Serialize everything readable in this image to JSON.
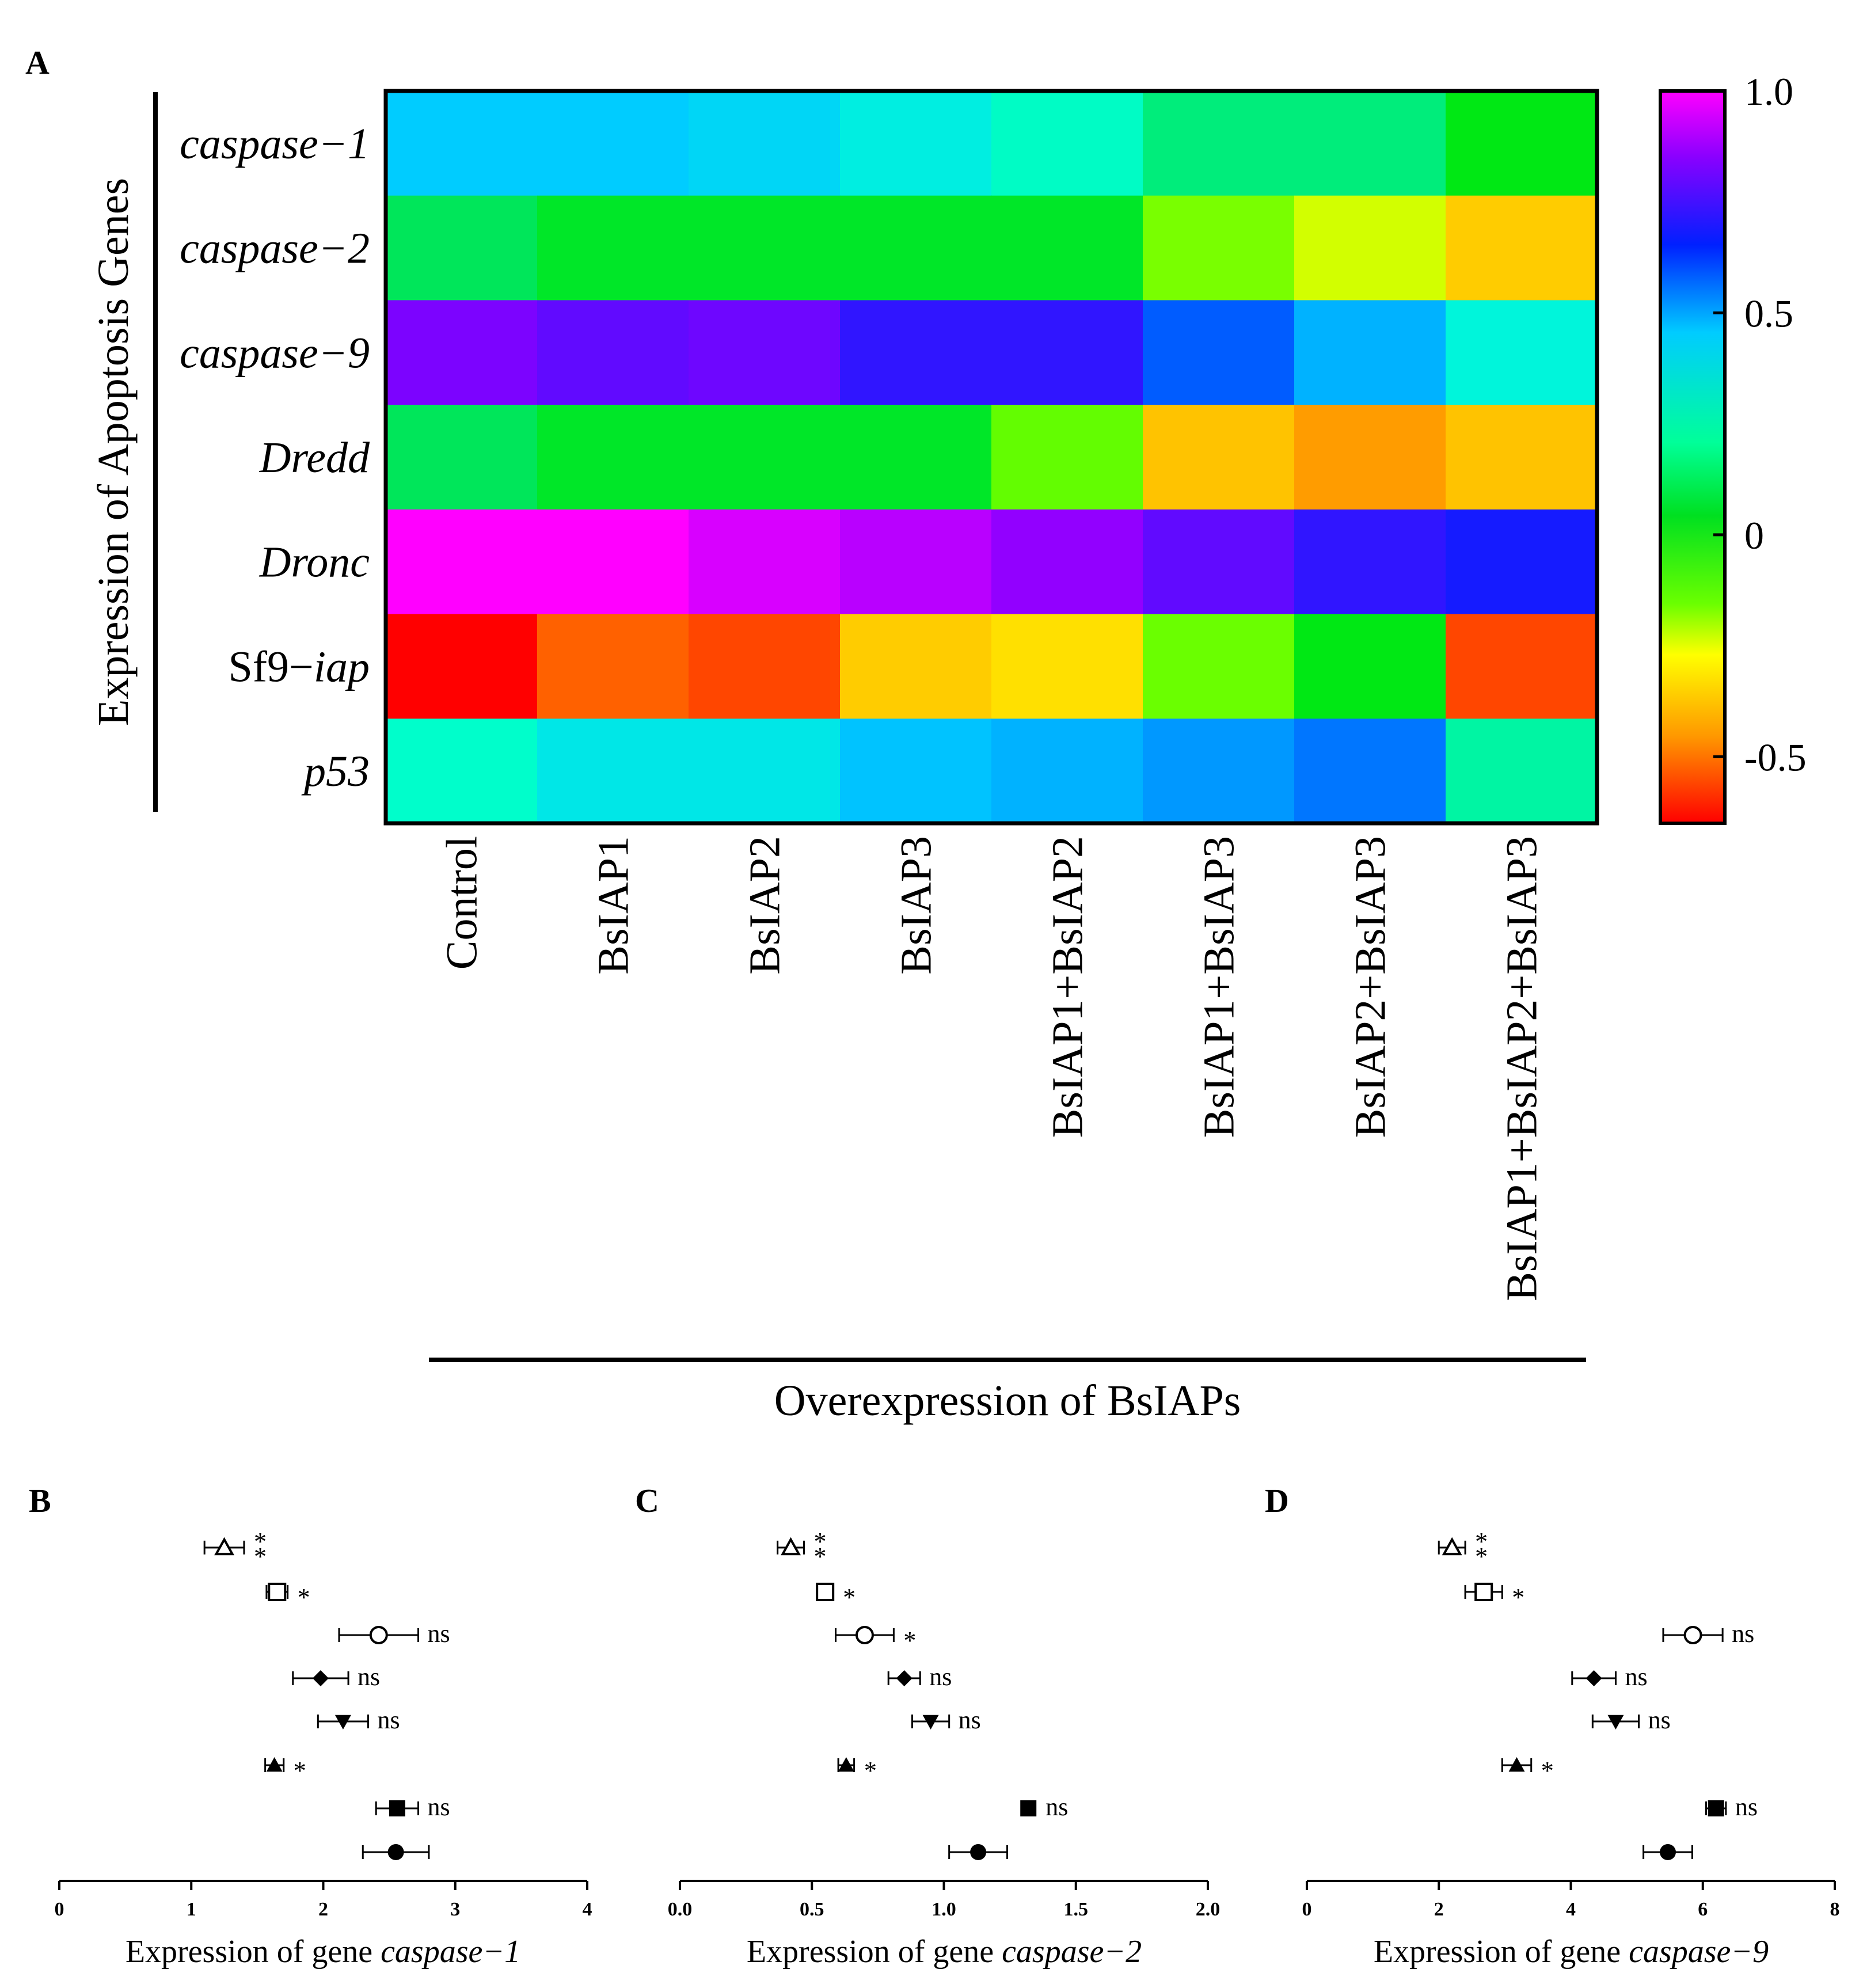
{
  "panelA": {
    "letter": "A",
    "ylabel": "Expression of Apoptosis Genes",
    "xlabel": "Overexpression of BsIAPs",
    "rows": [
      {
        "pre": "",
        "it": "caspase−1",
        "post": ""
      },
      {
        "pre": "",
        "it": "caspase−2",
        "post": ""
      },
      {
        "pre": "",
        "it": "caspase−9",
        "post": ""
      },
      {
        "pre": "",
        "it": "Dredd",
        "post": ""
      },
      {
        "pre": "",
        "it": "Dronc",
        "post": ""
      },
      {
        "pre": "Sf9−",
        "it": "iap",
        "post": ""
      },
      {
        "pre": "",
        "it": "p53",
        "post": ""
      }
    ],
    "columns": [
      "Control",
      "BsIAP1",
      "BsIAP2",
      "BsIAP3",
      "BsIAP1+BsIAP2",
      "BsIAP1+BsIAP3",
      "BsIAP2+BsIAP3",
      "BsIAP1+BsIAP2+BsIAP3"
    ],
    "colorbar_ticks": [
      "1.0",
      "0.5",
      "0",
      "-0.5"
    ]
  },
  "chart_data": [
    {
      "type": "heatmap",
      "panel": "A",
      "rows": [
        "caspase-1",
        "caspase-2",
        "caspase-9",
        "Dredd",
        "Dronc",
        "Sf9-iap",
        "p53"
      ],
      "columns": [
        "Control",
        "BsIAP1",
        "BsIAP2",
        "BsIAP3",
        "BsIAP1+BsIAP2",
        "BsIAP1+BsIAP3",
        "BsIAP2+BsIAP3",
        "BsIAP1+BsIAP2+BsIAP3"
      ],
      "values": [
        [
          0.45,
          0.45,
          0.42,
          0.35,
          0.28,
          0.17,
          0.17,
          0.05
        ],
        [
          0.12,
          0.07,
          0.07,
          0.07,
          0.07,
          -0.12,
          -0.24,
          -0.42
        ],
        [
          0.83,
          0.79,
          0.81,
          0.72,
          0.72,
          0.58,
          0.48,
          0.33
        ],
        [
          0.12,
          0.07,
          0.07,
          0.07,
          -0.09,
          -0.45,
          -0.51,
          -0.45
        ],
        [
          1.0,
          1.0,
          0.95,
          0.91,
          0.86,
          0.79,
          0.72,
          0.68
        ],
        [
          -0.65,
          -0.56,
          -0.58,
          -0.42,
          -0.35,
          -0.1,
          0.05,
          -0.58
        ],
        [
          0.29,
          0.37,
          0.37,
          0.46,
          0.48,
          0.51,
          0.55,
          0.23
        ]
      ],
      "colorbar_range": [
        -0.65,
        1.0
      ],
      "colorbar_ticks": [
        1.0,
        0.5,
        0,
        -0.5
      ]
    },
    {
      "type": "scatter",
      "panel": "B",
      "title": "B",
      "xlabel": "Expression of gene caspase−1",
      "xlim": [
        0,
        4
      ],
      "xticks": [
        "0",
        "1",
        "2",
        "3",
        "4"
      ],
      "points": [
        {
          "marker": "open-triangle",
          "mean": 1.25,
          "err": 0.15,
          "sig": "**"
        },
        {
          "marker": "open-square",
          "mean": 1.65,
          "err": 0.08,
          "sig": "*"
        },
        {
          "marker": "open-circle",
          "mean": 2.42,
          "err": 0.3,
          "sig": "ns"
        },
        {
          "marker": "filled-diamond",
          "mean": 1.98,
          "err": 0.21,
          "sig": "ns"
        },
        {
          "marker": "filled-triangle-down",
          "mean": 2.15,
          "err": 0.19,
          "sig": "ns"
        },
        {
          "marker": "filled-triangle",
          "mean": 1.63,
          "err": 0.07,
          "sig": "*"
        },
        {
          "marker": "filled-square",
          "mean": 2.56,
          "err": 0.16,
          "sig": "ns"
        },
        {
          "marker": "filled-circle",
          "mean": 2.55,
          "err": 0.25,
          "sig": ""
        }
      ]
    },
    {
      "type": "scatter",
      "panel": "C",
      "title": "C",
      "xlabel": "Expression of gene caspase−2",
      "xlim": [
        0,
        2
      ],
      "xticks": [
        "0.0",
        "0.5",
        "1.0",
        "1.5",
        "2.0"
      ],
      "points": [
        {
          "marker": "open-triangle",
          "mean": 0.42,
          "err": 0.05,
          "sig": "**"
        },
        {
          "marker": "open-square",
          "mean": 0.55,
          "err": 0.03,
          "sig": "*"
        },
        {
          "marker": "open-circle",
          "mean": 0.7,
          "err": 0.11,
          "sig": "*"
        },
        {
          "marker": "filled-diamond",
          "mean": 0.85,
          "err": 0.06,
          "sig": "ns"
        },
        {
          "marker": "filled-triangle-down",
          "mean": 0.95,
          "err": 0.07,
          "sig": "ns"
        },
        {
          "marker": "filled-triangle",
          "mean": 0.63,
          "err": 0.03,
          "sig": "*"
        },
        {
          "marker": "filled-square",
          "mean": 1.32,
          "err": 0.0,
          "sig": "ns"
        },
        {
          "marker": "filled-circle",
          "mean": 1.13,
          "err": 0.11,
          "sig": ""
        }
      ]
    },
    {
      "type": "scatter",
      "panel": "D",
      "title": "D",
      "xlabel": "Expression of gene caspase−9",
      "xlim": [
        0,
        8
      ],
      "xticks": [
        "0",
        "2",
        "4",
        "6",
        "8"
      ],
      "points": [
        {
          "marker": "open-triangle",
          "mean": 2.2,
          "err": 0.2,
          "sig": "**"
        },
        {
          "marker": "open-square",
          "mean": 2.68,
          "err": 0.28,
          "sig": "*"
        },
        {
          "marker": "open-circle",
          "mean": 5.85,
          "err": 0.45,
          "sig": "ns"
        },
        {
          "marker": "filled-diamond",
          "mean": 4.35,
          "err": 0.33,
          "sig": "ns"
        },
        {
          "marker": "filled-triangle-down",
          "mean": 4.68,
          "err": 0.35,
          "sig": "ns"
        },
        {
          "marker": "filled-triangle",
          "mean": 3.18,
          "err": 0.22,
          "sig": "*"
        },
        {
          "marker": "filled-square",
          "mean": 6.2,
          "err": 0.15,
          "sig": "ns"
        },
        {
          "marker": "filled-circle",
          "mean": 5.47,
          "err": 0.37,
          "sig": ""
        }
      ]
    }
  ],
  "panels": {
    "B": {
      "letter": "B",
      "xlabel_pre": "Expression of gene ",
      "xlabel_it": "caspase−1"
    },
    "C": {
      "letter": "C",
      "xlabel_pre": "Expression of gene ",
      "xlabel_it": "caspase−2"
    },
    "D": {
      "letter": "D",
      "xlabel_pre": "Expression of gene ",
      "xlabel_it": "caspase−9"
    }
  }
}
